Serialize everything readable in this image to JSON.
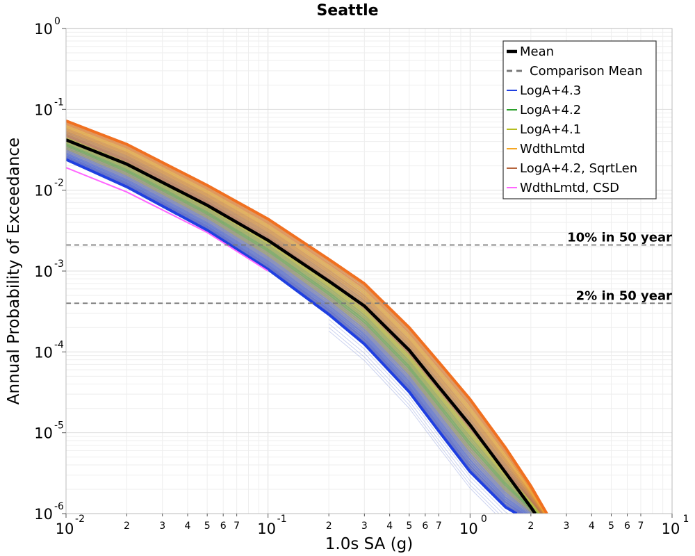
{
  "chart_data": {
    "type": "line",
    "title": "Seattle",
    "xlabel": "1.0s SA (g)",
    "ylabel": "Annual Probability of Exceedance",
    "xscale": "log",
    "yscale": "log",
    "xlim": [
      0.01,
      10
    ],
    "ylim": [
      1e-06,
      1
    ],
    "grid": true,
    "legend_position": "top-right",
    "x_major_ticks": [
      {
        "base": "10",
        "exp": "-2"
      },
      {
        "base": "10",
        "exp": "-1"
      },
      {
        "base": "10",
        "exp": "0"
      },
      {
        "base": "10",
        "exp": "1"
      }
    ],
    "x_minor_tick_labels": [
      "2",
      "3",
      "4",
      "5",
      "6",
      "7"
    ],
    "y_major_ticks": [
      {
        "base": "10",
        "exp": "0"
      },
      {
        "base": "10",
        "exp": "-1"
      },
      {
        "base": "10",
        "exp": "-2"
      },
      {
        "base": "10",
        "exp": "-3"
      },
      {
        "base": "10",
        "exp": "-4"
      },
      {
        "base": "10",
        "exp": "-5"
      },
      {
        "base": "10",
        "exp": "-6"
      }
    ],
    "series": [
      {
        "name": "Mean",
        "color": "#000000",
        "style": "solid-thick",
        "x": [
          0.01,
          0.02,
          0.05,
          0.1,
          0.2,
          0.3,
          0.5,
          0.7,
          1.0,
          1.5,
          2.0,
          2.1
        ],
        "y": [
          0.042,
          0.021,
          0.0065,
          0.0024,
          0.00075,
          0.00037,
          0.000105,
          3.7e-05,
          1.25e-05,
          3.2e-06,
          1.2e-06,
          1e-06
        ]
      },
      {
        "name": "Comparison Mean",
        "color": "#777777",
        "style": "dashed",
        "x": [],
        "y": []
      },
      {
        "name": "LogA+4.3",
        "color": "#1f3fe0",
        "style": "solid",
        "x": [
          0.01,
          0.02,
          0.05,
          0.1,
          0.2,
          0.3,
          0.5,
          0.7,
          1.0,
          1.5,
          1.7
        ],
        "y": [
          0.024,
          0.011,
          0.0032,
          0.00105,
          0.00029,
          0.000125,
          3.2e-05,
          1.05e-05,
          3.3e-06,
          1.2e-06,
          1e-06
        ]
      },
      {
        "name": "LogA+4.2",
        "color": "#2ca02c",
        "style": "solid",
        "x": [],
        "y": []
      },
      {
        "name": "LogA+4.1",
        "color": "#b5bd1f",
        "style": "solid",
        "x": [],
        "y": []
      },
      {
        "name": "WdthLmtd",
        "color": "#f5a623",
        "style": "solid",
        "x": [
          0.01,
          0.02,
          0.05,
          0.1,
          0.2,
          0.3,
          0.5,
          0.7,
          1.0,
          1.5,
          2.0,
          2.4
        ],
        "y": [
          0.072,
          0.037,
          0.0115,
          0.0044,
          0.0014,
          0.0007,
          0.0002,
          7.5e-05,
          2.6e-05,
          6.5e-06,
          2.2e-06,
          1e-06
        ]
      },
      {
        "name": "LogA+4.2, SqrtLen",
        "color": "#b5643c",
        "style": "solid",
        "x": [],
        "y": []
      },
      {
        "name": "WdthLmtd, CSD",
        "color": "#ff66ff",
        "style": "solid",
        "x": [
          0.01,
          0.02,
          0.05,
          0.1
        ],
        "y": [
          0.019,
          0.0095,
          0.003,
          0.001
        ]
      }
    ],
    "reference_lines": [
      {
        "label": "10% in 50 year",
        "y": 0.0021
      },
      {
        "label": "2% in 50 year",
        "y": 0.0004
      }
    ]
  }
}
